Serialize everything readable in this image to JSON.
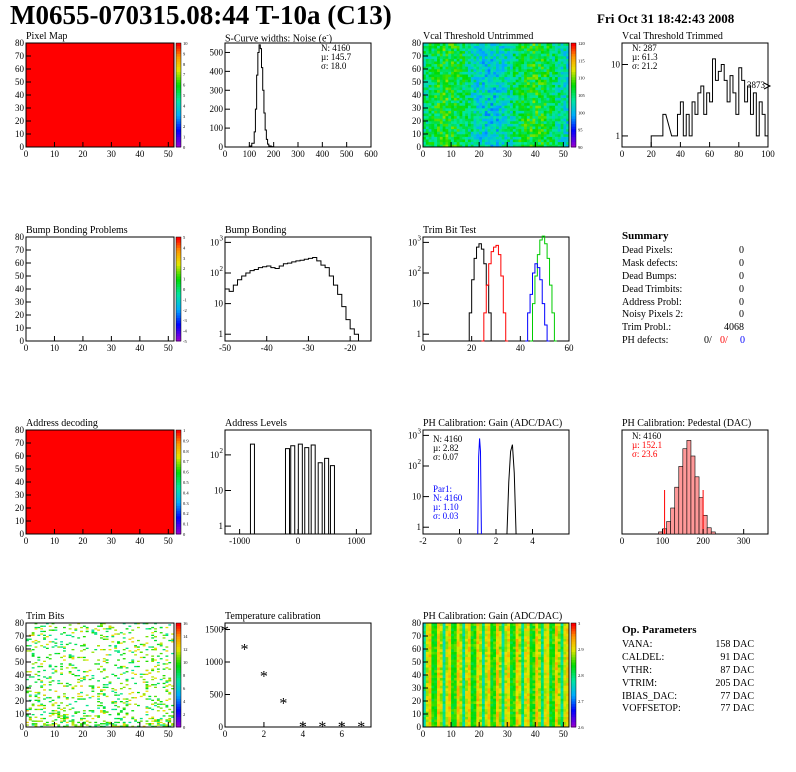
{
  "header": {
    "title": "M0655-070315.08:44 T-10a (C13)",
    "date": "Fri Oct 31 18:42:43 2008"
  },
  "colors": {
    "red": "#ff0000",
    "blue": "#0000ff",
    "green": "#00cc00",
    "black": "#000000"
  },
  "panels": {
    "pixel_map": {
      "title": "Pixel Map",
      "x_ticks": [
        "0",
        "10",
        "20",
        "30",
        "40",
        "50"
      ],
      "y_ticks": [
        "0",
        "10",
        "20",
        "30",
        "40",
        "50",
        "60",
        "70",
        "80"
      ],
      "z_ticks": [
        "0",
        "1",
        "2",
        "3",
        "4",
        "5",
        "6",
        "7",
        "8",
        "9",
        "10"
      ]
    },
    "scurve": {
      "title": "S-Curve widths: Noise (e",
      "title_sup": "-",
      "title_end": ")",
      "stats": [
        "N: 4160",
        "µ: 145.7",
        "σ: 18.0"
      ],
      "x_ticks": [
        "0",
        "100",
        "200",
        "300",
        "400",
        "500",
        "600"
      ],
      "y_ticks": [
        "0",
        "100",
        "200",
        "300",
        "400",
        "500"
      ]
    },
    "vcal_untrimmed": {
      "title": "Vcal Threshold Untrimmed",
      "x_ticks": [
        "0",
        "10",
        "20",
        "30",
        "40",
        "50"
      ],
      "y_ticks": [
        "0",
        "10",
        "20",
        "30",
        "40",
        "50",
        "60",
        "70",
        "80"
      ],
      "z_ticks": [
        "90",
        "95",
        "100",
        "105",
        "110",
        "115",
        "120"
      ]
    },
    "vcal_trimmed": {
      "title": "Vcal Threshold Trimmed",
      "stats": [
        "N:  287",
        "µ: 61.3",
        "σ: 21.2"
      ],
      "overflow": "3873",
      "x_ticks": [
        "0",
        "20",
        "40",
        "60",
        "80",
        "100"
      ],
      "y_ticks": [
        "1",
        "10"
      ]
    },
    "bump_problems": {
      "title": "Bump Bonding Problems",
      "x_ticks": [
        "0",
        "10",
        "20",
        "30",
        "40",
        "50"
      ],
      "y_ticks": [
        "0",
        "10",
        "20",
        "30",
        "40",
        "50",
        "60",
        "70",
        "80"
      ],
      "z_ticks": [
        "-5",
        "-4",
        "-3",
        "-2",
        "-1",
        "0",
        "1",
        "2",
        "3",
        "4",
        "5"
      ]
    },
    "bump_bonding": {
      "title": "Bump Bonding",
      "x_ticks": [
        "-50",
        "-40",
        "-30",
        "-20"
      ],
      "y_ticks": [
        "1",
        "10",
        "10",
        "10"
      ],
      "y_exp": [
        "",
        "",
        "2",
        "3"
      ]
    },
    "trim_bit": {
      "title": "Trim Bit Test",
      "x_ticks": [
        "0",
        "20",
        "40",
        "60"
      ],
      "y_ticks": [
        "1",
        "10",
        "10",
        "10"
      ],
      "y_exp": [
        "",
        "",
        "2",
        "3"
      ]
    },
    "summary": {
      "title": "Summary",
      "rows": [
        {
          "label": "Dead Pixels:",
          "value": "0"
        },
        {
          "label": "Mask defects:",
          "value": "0"
        },
        {
          "label": "Dead Bumps:",
          "value": "0"
        },
        {
          "label": "Dead Trimbits:",
          "value": "0"
        },
        {
          "label": "Address Probl:",
          "value": "0"
        },
        {
          "label": "Noisy Pixels 2:",
          "value": "0"
        },
        {
          "label": "Trim Probl.:",
          "value": "4068"
        }
      ],
      "ph_label": "PH defects:",
      "ph_v1": "0/",
      "ph_v2": "0/",
      "ph_v3": "0"
    },
    "address_decoding": {
      "title": "Address decoding",
      "x_ticks": [
        "0",
        "10",
        "20",
        "30",
        "40",
        "50"
      ],
      "y_ticks": [
        "0",
        "10",
        "20",
        "30",
        "40",
        "50",
        "60",
        "70",
        "80"
      ],
      "z_ticks": [
        "0",
        "0.1",
        "0.2",
        "0.3",
        "0.4",
        "0.5",
        "0.6",
        "0.7",
        "0.8",
        "0.9",
        "1"
      ]
    },
    "address_levels": {
      "title": "Address Levels",
      "x_ticks": [
        "-1000",
        "0",
        "1000"
      ],
      "y_ticks": [
        "1",
        "10",
        "10"
      ],
      "y_exp": [
        "",
        "",
        "2"
      ]
    },
    "ph_gain": {
      "title": "PH Calibration: Gain (ADC/DAC)",
      "stats": [
        "N: 4160",
        "µ: 2.82",
        "σ: 0.07"
      ],
      "par1": [
        "Par1:",
        "N: 4160",
        "µ: 1.10",
        "σ: 0.03"
      ],
      "x_ticks": [
        "-2",
        "0",
        "2",
        "4"
      ],
      "y_ticks": [
        "1",
        "10",
        "10",
        "10"
      ],
      "y_exp": [
        "",
        "",
        "2",
        "3"
      ]
    },
    "ph_pedestal": {
      "title": "PH Calibration: Pedestal (DAC)",
      "stats": [
        "N: 4160",
        "µ: 152.1",
        "σ: 23.6"
      ],
      "x_ticks": [
        "0",
        "100",
        "200",
        "300"
      ]
    },
    "trim_bits": {
      "title": "Trim Bits",
      "x_ticks": [
        "0",
        "10",
        "20",
        "30",
        "40",
        "50"
      ],
      "y_ticks": [
        "0",
        "10",
        "20",
        "30",
        "40",
        "50",
        "60",
        "70",
        "80"
      ],
      "z_ticks": [
        "0",
        "2",
        "4",
        "6",
        "8",
        "10",
        "12",
        "14",
        "16"
      ]
    },
    "temp_cal": {
      "title": "Temperature calibration",
      "x_ticks": [
        "0",
        "2",
        "4",
        "6"
      ],
      "y_ticks": [
        "0",
        "500",
        "1000",
        "1500"
      ]
    },
    "ph_gain2": {
      "title": "PH Calibration: Gain (ADC/DAC)",
      "x_ticks": [
        "0",
        "10",
        "20",
        "30",
        "40",
        "50"
      ],
      "y_ticks": [
        "0",
        "10",
        "20",
        "30",
        "40",
        "50",
        "60",
        "70",
        "80"
      ],
      "z_ticks": [
        "2.6",
        "2.7",
        "2.8",
        "2.9",
        "3"
      ]
    },
    "op_params": {
      "title": "Op. Parameters",
      "rows": [
        {
          "label": "VANA:",
          "value": "158 DAC"
        },
        {
          "label": "CALDEL:",
          "value": "91 DAC"
        },
        {
          "label": "VTHR:",
          "value": "87 DAC"
        },
        {
          "label": "VTRIM:",
          "value": "205 DAC"
        },
        {
          "label": "IBIAS_DAC:",
          "value": "77 DAC"
        },
        {
          "label": "VOFFSETOP:",
          "value": "77 DAC"
        }
      ]
    }
  },
  "chart_data": [
    {
      "type": "heatmap",
      "title": "Pixel Map",
      "xlim": [
        0,
        52
      ],
      "ylim": [
        0,
        80
      ],
      "zlim": [
        0,
        10
      ],
      "fill_value": 10
    },
    {
      "type": "bar",
      "title": "S-Curve widths: Noise (e-)",
      "xlim": [
        0,
        600
      ],
      "ylim": [
        0,
        550
      ],
      "x": [
        90,
        100,
        110,
        120,
        125,
        130,
        135,
        140,
        145,
        150,
        155,
        160,
        165,
        170,
        175,
        180,
        190,
        200
      ],
      "values": [
        0,
        5,
        20,
        80,
        200,
        380,
        500,
        540,
        520,
        420,
        300,
        180,
        90,
        40,
        15,
        5,
        2,
        0
      ]
    },
    {
      "type": "heatmap",
      "title": "Vcal Threshold Untrimmed",
      "xlim": [
        0,
        52
      ],
      "ylim": [
        0,
        80
      ],
      "zlim": [
        90,
        120
      ]
    },
    {
      "type": "bar",
      "title": "Vcal Threshold Trimmed",
      "xlim": [
        0,
        100
      ],
      "log_y": true,
      "ylim": [
        0.7,
        20
      ],
      "x": [
        20,
        22,
        26,
        28,
        34,
        36,
        38,
        40,
        42,
        44,
        46,
        48,
        50,
        52,
        54,
        56,
        58,
        60,
        62,
        64,
        66,
        68,
        70,
        72,
        74,
        76,
        78,
        80,
        82,
        84,
        86,
        88,
        90,
        92,
        94,
        96,
        98
      ],
      "values": [
        1,
        1,
        1,
        2,
        1,
        1,
        2,
        3,
        1,
        2,
        1,
        3,
        2,
        4,
        5,
        2,
        4,
        3,
        12,
        6,
        8,
        10,
        6,
        3,
        7,
        4,
        2,
        9,
        6,
        3,
        5,
        2,
        4,
        1,
        3,
        2,
        1
      ]
    },
    {
      "type": "heatmap",
      "title": "Bump Bonding Problems",
      "xlim": [
        0,
        52
      ],
      "ylim": [
        0,
        80
      ],
      "zlim": [
        -5,
        5
      ]
    },
    {
      "type": "bar",
      "title": "Bump Bonding",
      "log_y": true,
      "xlim": [
        -50,
        -15
      ],
      "ylim": [
        0.6,
        1500
      ],
      "x": [
        -50,
        -49,
        -48,
        -47,
        -46,
        -45,
        -44,
        -43,
        -42,
        -41,
        -40,
        -39,
        -38,
        -37,
        -36,
        -35,
        -34,
        -33,
        -32,
        -31,
        -30,
        -29,
        -28,
        -27,
        -26,
        -25,
        -24,
        -23,
        -22,
        -21,
        -20,
        -19,
        -18
      ],
      "values": [
        30,
        25,
        40,
        60,
        80,
        100,
        120,
        130,
        150,
        160,
        170,
        150,
        140,
        170,
        200,
        210,
        230,
        250,
        260,
        280,
        300,
        320,
        250,
        180,
        150,
        80,
        40,
        20,
        8,
        3,
        1.5,
        1,
        0
      ]
    },
    {
      "type": "line",
      "title": "Trim Bit Test",
      "log_y": true,
      "xlim": [
        0,
        60
      ],
      "ylim": [
        0.6,
        1500
      ],
      "series": [
        {
          "color": "#000000",
          "x": [
            18,
            19,
            20,
            21,
            22,
            23,
            24,
            25,
            26,
            27,
            28
          ],
          "values": [
            0,
            5,
            60,
            300,
            700,
            900,
            600,
            200,
            40,
            5,
            0
          ]
        },
        {
          "color": "#ff0000",
          "x": [
            24,
            25,
            26,
            27,
            28,
            29,
            30,
            31,
            32,
            33,
            34
          ],
          "values": [
            0,
            5,
            40,
            200,
            500,
            700,
            800,
            400,
            80,
            5,
            0
          ]
        },
        {
          "color": "#00cc00",
          "x": [
            44,
            45,
            46,
            47,
            48,
            49,
            50,
            51,
            52,
            53,
            54
          ],
          "values": [
            0,
            10,
            80,
            400,
            1200,
            1600,
            900,
            300,
            40,
            5,
            0
          ]
        },
        {
          "color": "#0000ff",
          "x": [
            42,
            43,
            44,
            45,
            46,
            47,
            48,
            49,
            50,
            51
          ],
          "values": [
            0,
            5,
            20,
            100,
            200,
            150,
            60,
            10,
            2,
            0
          ]
        }
      ]
    },
    {
      "type": "heatmap",
      "title": "Address decoding",
      "xlim": [
        0,
        52
      ],
      "ylim": [
        0,
        80
      ],
      "zlim": [
        0,
        1
      ],
      "fill_value": 1
    },
    {
      "type": "bar",
      "title": "Address Levels",
      "log_y": true,
      "xlim": [
        -1250,
        1250
      ],
      "ylim": [
        0.6,
        500
      ],
      "x": [
        -780,
        -180,
        -90,
        40,
        150,
        260,
        380,
        490,
        590
      ],
      "values": [
        200,
        150,
        180,
        200,
        160,
        190,
        60,
        80,
        50
      ]
    },
    {
      "type": "line",
      "title": "PH Calibration: Gain (ADC/DAC)",
      "log_y": true,
      "xlim": [
        -2,
        6
      ],
      "ylim": [
        0.6,
        1500
      ],
      "series": [
        {
          "color": "#000000",
          "x": [
            2.6,
            2.7,
            2.8,
            2.9,
            3.0,
            3.1
          ],
          "values": [
            0,
            30,
            300,
            500,
            60,
            0
          ]
        },
        {
          "color": "#0000ff",
          "x": [
            1.0,
            1.05,
            1.1,
            1.15,
            1.2
          ],
          "values": [
            0,
            200,
            800,
            300,
            0
          ]
        }
      ]
    },
    {
      "type": "bar",
      "title": "PH Calibration: Pedestal (DAC)",
      "xlim": [
        0,
        360
      ],
      "ylim": [
        0,
        100
      ],
      "x": [
        90,
        100,
        110,
        120,
        130,
        140,
        150,
        160,
        170,
        180,
        190,
        200,
        210,
        220
      ],
      "values": [
        2,
        5,
        12,
        25,
        45,
        65,
        82,
        90,
        75,
        55,
        35,
        18,
        6,
        2
      ]
    },
    {
      "type": "heatmap",
      "title": "Trim Bits",
      "xlim": [
        0,
        52
      ],
      "ylim": [
        0,
        80
      ],
      "zlim": [
        0,
        16
      ]
    },
    {
      "type": "scatter",
      "title": "Temperature calibration",
      "xlim": [
        0,
        7.5
      ],
      "ylim": [
        0,
        1600
      ],
      "x": [
        0,
        1,
        2,
        3,
        4,
        5,
        6,
        7
      ],
      "values": [
        1480,
        1190,
        780,
        360,
        0,
        0,
        0,
        0
      ]
    },
    {
      "type": "heatmap",
      "title": "PH Calibration: Gain (ADC/DAC)",
      "xlim": [
        0,
        52
      ],
      "ylim": [
        0,
        80
      ],
      "zlim": [
        2.6,
        3
      ]
    }
  ]
}
